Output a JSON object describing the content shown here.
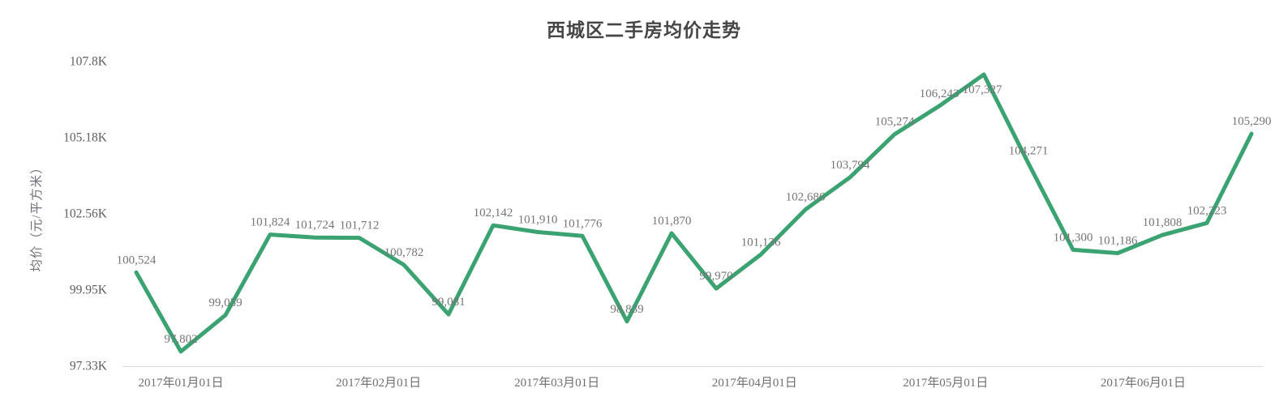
{
  "title": "西城区二手房均价走势",
  "chart_data": {
    "type": "line",
    "title": "西城区二手房均价走势",
    "ylabel": "均价（元/平方米）",
    "xlabel": "",
    "series_name": "均价",
    "line_color": "#3ba272",
    "grid": false,
    "legend": false,
    "ylim": [
      97330,
      107800
    ],
    "values": [
      100524,
      97802,
      99059,
      101824,
      101724,
      101712,
      100782,
      99081,
      102142,
      101910,
      101776,
      98839,
      101870,
      99970,
      101136,
      102686,
      103794,
      105274,
      106243,
      107327,
      104271,
      101300,
      101186,
      101808,
      102223,
      105290
    ],
    "point_labels": [
      "100,524",
      "97,802",
      "99,059",
      "101,824",
      "101,724",
      "101,712",
      "100,782",
      "99,081",
      "102,142",
      "101,910",
      "101,776",
      "98,839",
      "101,870",
      "99,970",
      "101,136",
      "102,686",
      "103,794",
      "105,274",
      "106,243",
      "107,327",
      "104,271",
      "101,300",
      "101,186",
      "101,808",
      "102,223",
      "105,290"
    ],
    "y_ticks": [
      {
        "label": "97.33K",
        "value": 97330
      },
      {
        "label": "99.95K",
        "value": 99950
      },
      {
        "label": "102.56K",
        "value": 102560
      },
      {
        "label": "105.18K",
        "value": 105180
      },
      {
        "label": "107.8K",
        "value": 107800
      }
    ],
    "x_ticks": [
      {
        "label": "2017年01月01日",
        "index": 1.0
      },
      {
        "label": "2017年02月01日",
        "index": 5.43
      },
      {
        "label": "2017年03月01日",
        "index": 9.43
      },
      {
        "label": "2017年04月01日",
        "index": 13.86
      },
      {
        "label": "2017年05月01日",
        "index": 18.14
      },
      {
        "label": "2017年06月01日",
        "index": 22.57
      }
    ]
  },
  "colors": {
    "line": "#3ba272",
    "axis_line": "#d9d9d9",
    "title_text": "#464646",
    "tick_text": "#5f5f5f",
    "point_label_text": "#757575"
  }
}
